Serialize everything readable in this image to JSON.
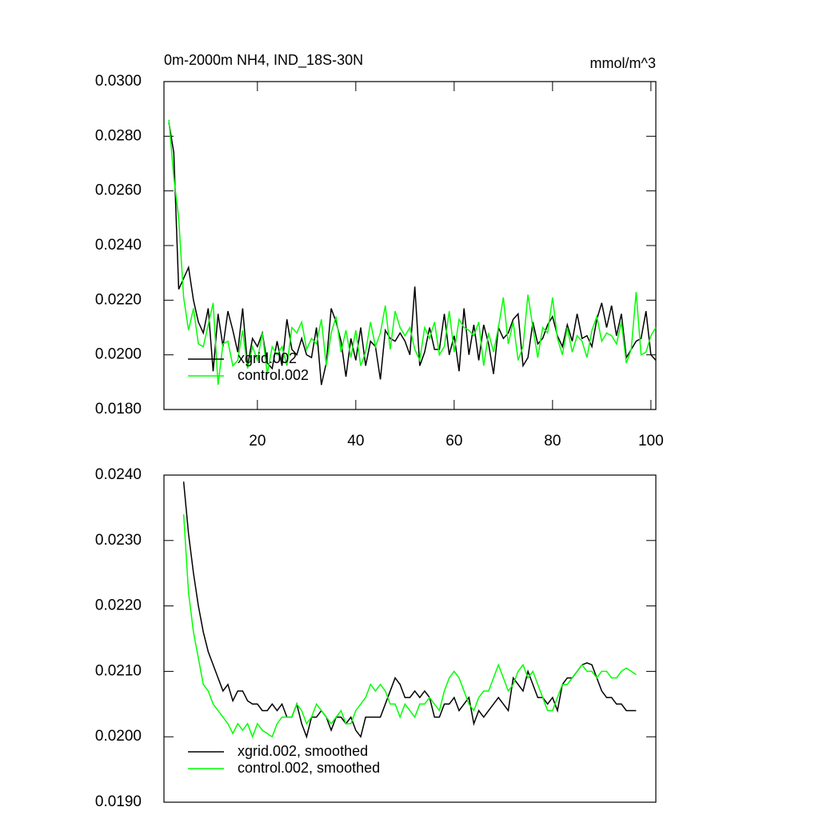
{
  "chart_data": [
    {
      "type": "line",
      "title": "0m-2000m NH4, IND_18S-30N",
      "units": "mmol/m^3",
      "x": [
        2,
        3,
        4,
        5,
        6,
        7,
        8,
        9,
        10,
        11,
        12,
        13,
        14,
        15,
        16,
        17,
        18,
        19,
        20,
        21,
        22,
        23,
        24,
        25,
        26,
        27,
        28,
        29,
        30,
        31,
        32,
        33,
        34,
        35,
        36,
        37,
        38,
        39,
        40,
        41,
        42,
        43,
        44,
        45,
        46,
        47,
        48,
        49,
        50,
        51,
        52,
        53,
        54,
        55,
        56,
        57,
        58,
        59,
        60,
        61,
        62,
        63,
        64,
        65,
        66,
        67,
        68,
        69,
        70,
        71,
        72,
        73,
        74,
        75,
        76,
        77,
        78,
        79,
        80,
        81,
        82,
        83,
        84,
        85,
        86,
        87,
        88,
        89,
        90,
        91,
        92,
        93,
        94,
        95,
        96,
        97,
        98,
        99,
        100,
        101
      ],
      "series": [
        {
          "name": "xgrid.002",
          "color": "#000000",
          "values": [
            0.0285,
            0.0274,
            0.0224,
            0.0228,
            0.0232,
            0.022,
            0.0212,
            0.0208,
            0.0217,
            0.0194,
            0.0215,
            0.0203,
            0.0216,
            0.0209,
            0.0201,
            0.0217,
            0.0196,
            0.0206,
            0.0203,
            0.0208,
            0.0197,
            0.0195,
            0.0205,
            0.0196,
            0.0213,
            0.0202,
            0.02,
            0.0206,
            0.02,
            0.0199,
            0.021,
            0.0189,
            0.0197,
            0.0217,
            0.0212,
            0.0205,
            0.0192,
            0.0206,
            0.0198,
            0.021,
            0.0196,
            0.0205,
            0.0203,
            0.0191,
            0.0209,
            0.0206,
            0.0205,
            0.0208,
            0.0205,
            0.02,
            0.0225,
            0.0196,
            0.0201,
            0.021,
            0.0202,
            0.0202,
            0.0215,
            0.02,
            0.0207,
            0.0194,
            0.0217,
            0.02,
            0.0211,
            0.0198,
            0.0211,
            0.0204,
            0.0193,
            0.021,
            0.0206,
            0.0208,
            0.0213,
            0.0215,
            0.0196,
            0.0199,
            0.0212,
            0.0204,
            0.0206,
            0.0211,
            0.0214,
            0.0207,
            0.0203,
            0.0211,
            0.0205,
            0.0215,
            0.0206,
            0.0207,
            0.0203,
            0.0213,
            0.0219,
            0.021,
            0.0218,
            0.0207,
            0.0215,
            0.0199,
            0.0202,
            0.0205,
            0.0206,
            0.0216,
            0.02,
            0.0198
          ]
        },
        {
          "name": "control.002",
          "color": "#00ff00",
          "values": [
            0.0286,
            0.0265,
            0.025,
            0.0221,
            0.0209,
            0.0217,
            0.0204,
            0.0203,
            0.0211,
            0.0219,
            0.0189,
            0.0204,
            0.0205,
            0.0196,
            0.0198,
            0.0209,
            0.0195,
            0.0203,
            0.0198,
            0.0208,
            0.0193,
            0.0203,
            0.02,
            0.0203,
            0.0196,
            0.021,
            0.0208,
            0.0212,
            0.0202,
            0.0206,
            0.0204,
            0.0213,
            0.0196,
            0.0208,
            0.0214,
            0.0201,
            0.0209,
            0.0199,
            0.0209,
            0.0196,
            0.0201,
            0.0212,
            0.0203,
            0.0208,
            0.0218,
            0.0202,
            0.0216,
            0.021,
            0.0207,
            0.021,
            0.0202,
            0.0198,
            0.021,
            0.0206,
            0.0212,
            0.02,
            0.0203,
            0.0216,
            0.0201,
            0.0213,
            0.021,
            0.0209,
            0.0207,
            0.0212,
            0.0196,
            0.0208,
            0.0201,
            0.021,
            0.0221,
            0.0204,
            0.0212,
            0.0198,
            0.0203,
            0.0222,
            0.021,
            0.0199,
            0.021,
            0.0208,
            0.0221,
            0.0206,
            0.02,
            0.021,
            0.0201,
            0.0207,
            0.0205,
            0.0199,
            0.0209,
            0.0214,
            0.0205,
            0.0208,
            0.0207,
            0.0204,
            0.0212,
            0.0197,
            0.0202,
            0.0223,
            0.02,
            0.0201,
            0.0207,
            0.021
          ]
        }
      ],
      "xlim": [
        1,
        101
      ],
      "xticks": [
        20,
        40,
        60,
        80,
        100
      ],
      "ylim": [
        0.018,
        0.03
      ],
      "yticks": [
        {
          "value": 0.018,
          "label": "0.0180"
        },
        {
          "value": 0.02,
          "label": "0.0200"
        },
        {
          "value": 0.022,
          "label": "0.0220"
        },
        {
          "value": 0.024,
          "label": "0.0240"
        },
        {
          "value": 0.026,
          "label": "0.0260"
        },
        {
          "value": 0.028,
          "label": "0.0280"
        },
        {
          "value": 0.03,
          "label": "0.0300"
        }
      ],
      "legend": "lower left"
    },
    {
      "type": "line",
      "x": [
        5,
        6,
        7,
        8,
        9,
        10,
        11,
        12,
        13,
        14,
        15,
        16,
        17,
        18,
        19,
        20,
        21,
        22,
        23,
        24,
        25,
        26,
        27,
        28,
        29,
        30,
        31,
        32,
        33,
        34,
        35,
        36,
        37,
        38,
        39,
        40,
        41,
        42,
        43,
        44,
        45,
        46,
        47,
        48,
        49,
        50,
        51,
        52,
        53,
        54,
        55,
        56,
        57,
        58,
        59,
        60,
        61,
        62,
        63,
        64,
        65,
        66,
        67,
        68,
        69,
        70,
        71,
        72,
        73,
        74,
        75,
        76,
        77,
        78,
        79,
        80,
        81,
        82,
        83,
        84,
        85,
        86,
        87,
        88,
        89,
        90,
        91,
        92,
        93,
        94,
        95,
        96,
        97
      ],
      "series": [
        {
          "name": "xgrid.002, smoothed",
          "color": "#000000",
          "values": [
            0.0239,
            0.0231,
            0.0225,
            0.022,
            0.0216,
            0.0213,
            0.0211,
            0.0209,
            0.0207,
            0.0208,
            0.02055,
            0.0207,
            0.0207,
            0.02055,
            0.0205,
            0.0205,
            0.0204,
            0.0204,
            0.0205,
            0.0204,
            0.0205,
            0.0203,
            0.0203,
            0.0205,
            0.0202,
            0.02,
            0.0203,
            0.0203,
            0.0204,
            0.0203,
            0.0201,
            0.0203,
            0.0203,
            0.0202,
            0.0203,
            0.0201,
            0.02,
            0.0203,
            0.0203,
            0.0203,
            0.0203,
            0.0205,
            0.0207,
            0.0209,
            0.0208,
            0.0206,
            0.0206,
            0.0207,
            0.0206,
            0.0207,
            0.0206,
            0.0203,
            0.0203,
            0.0205,
            0.0205,
            0.0206,
            0.0204,
            0.0205,
            0.0206,
            0.0202,
            0.0204,
            0.0203,
            0.0204,
            0.0205,
            0.0206,
            0.0205,
            0.0204,
            0.0209,
            0.0208,
            0.0207,
            0.021,
            0.0208,
            0.0206,
            0.0206,
            0.0205,
            0.0206,
            0.0204,
            0.0208,
            0.0209,
            0.0209,
            0.021,
            0.0211,
            0.02113,
            0.0211,
            0.0209,
            0.0207,
            0.0206,
            0.0206,
            0.0205,
            0.0205,
            0.0204,
            0.0204,
            0.0204
          ]
        },
        {
          "name": "control.002, smoothed",
          "color": "#00ff00",
          "values": [
            0.0234,
            0.0222,
            0.0216,
            0.0212,
            0.0208,
            0.0207,
            0.0205,
            0.0204,
            0.0203,
            0.0202,
            0.02005,
            0.0202,
            0.0201,
            0.0202,
            0.02,
            0.0202,
            0.0201,
            0.02005,
            0.02,
            0.0202,
            0.0203,
            0.0203,
            0.0203,
            0.0205,
            0.0204,
            0.0202,
            0.0203,
            0.0205,
            0.0204,
            0.0203,
            0.0202,
            0.0203,
            0.0204,
            0.0202,
            0.0202,
            0.0204,
            0.0205,
            0.0206,
            0.0208,
            0.0207,
            0.0208,
            0.0207,
            0.0205,
            0.0205,
            0.0203,
            0.0205,
            0.0204,
            0.0203,
            0.0205,
            0.0205,
            0.0206,
            0.0205,
            0.0204,
            0.0207,
            0.0209,
            0.021,
            0.0209,
            0.0207,
            0.0205,
            0.0204,
            0.0206,
            0.0207,
            0.0207,
            0.0209,
            0.0211,
            0.0209,
            0.0207,
            0.0208,
            0.021,
            0.0211,
            0.0209,
            0.021,
            0.0208,
            0.0206,
            0.0204,
            0.0204,
            0.0206,
            0.0208,
            0.0208,
            0.0209,
            0.021,
            0.0211,
            0.021,
            0.021,
            0.0209,
            0.021,
            0.021,
            0.0209,
            0.0209,
            0.021,
            0.02105,
            0.021,
            0.02095
          ]
        }
      ],
      "xlim": [
        1,
        101
      ],
      "ylim": [
        0.019,
        0.024
      ],
      "yticks": [
        {
          "value": 0.019,
          "label": "0.0190"
        },
        {
          "value": 0.02,
          "label": "0.0200"
        },
        {
          "value": 0.021,
          "label": "0.0210"
        },
        {
          "value": 0.022,
          "label": "0.0220"
        },
        {
          "value": 0.023,
          "label": "0.0230"
        },
        {
          "value": 0.024,
          "label": "0.0240"
        }
      ],
      "legend": "lower left"
    }
  ]
}
